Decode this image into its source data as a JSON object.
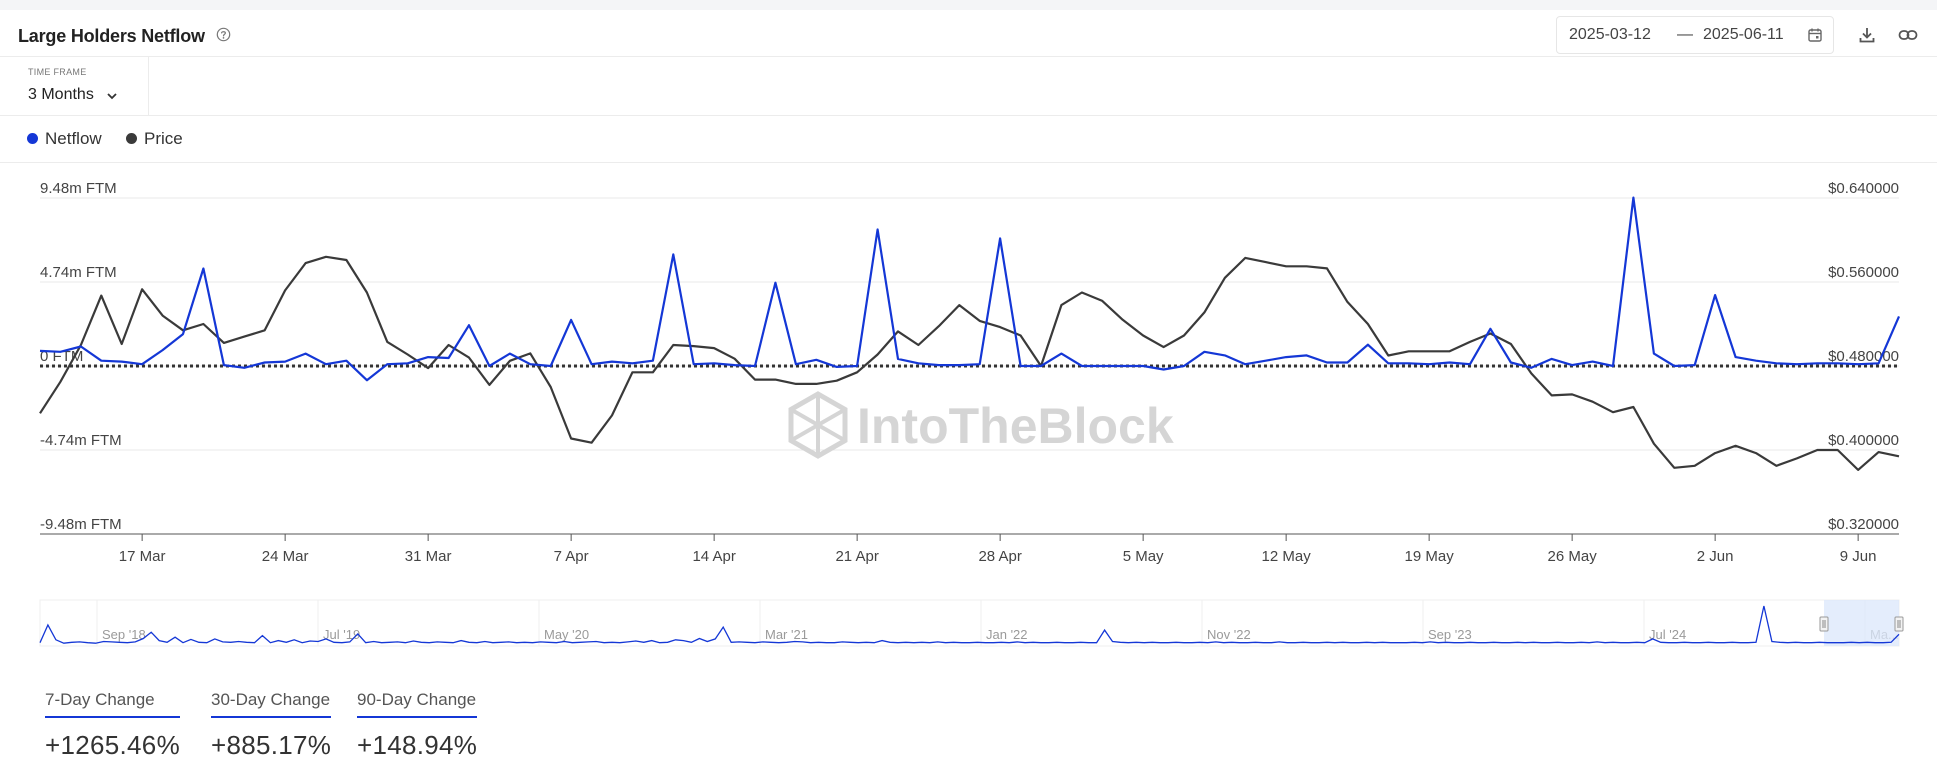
{
  "header": {
    "title": "Large Holders Netflow",
    "date_start": "2025-03-12",
    "date_sep": "—",
    "date_end": "2025-06-11"
  },
  "timeframe": {
    "label": "TIME FRAME",
    "value": "3 Months"
  },
  "legend": [
    {
      "label": "Netflow",
      "color": "#1437d6"
    },
    {
      "label": "Price",
      "color": "#3a3a3a"
    }
  ],
  "watermark": "IntoTheBlock",
  "stats": [
    {
      "label": "7-Day Change",
      "value": "+1265.46%"
    },
    {
      "label": "30-Day Change",
      "value": "+885.17%"
    },
    {
      "label": "90-Day Change",
      "value": "+148.94%"
    }
  ],
  "chart_data": {
    "type": "line",
    "x_start": "2025-03-12",
    "x_end": "2025-06-11",
    "x_ticks": [
      "17 Mar",
      "24 Mar",
      "31 Mar",
      "7 Apr",
      "14 Apr",
      "21 Apr",
      "28 Apr",
      "5 May",
      "12 May",
      "19 May",
      "26 May",
      "2 Jun",
      "9 Jun"
    ],
    "y_left": {
      "ticks": [
        "9.48m FTM",
        "4.74m FTM",
        "0 FTM",
        "-4.74m FTM",
        "-9.48m FTM"
      ],
      "min": -9.48,
      "max": 9.48,
      "unit": "m FTM"
    },
    "y_right": {
      "ticks": [
        "$0.640000",
        "$0.560000",
        "$0.480000",
        "$0.400000",
        "$0.320000"
      ],
      "min": 0.32,
      "max": 0.64
    },
    "grid": true,
    "zero_line": "dotted",
    "series": [
      {
        "name": "Netflow",
        "axis": "left",
        "color": "#1437d6",
        "values": [
          0.85,
          0.8,
          1.1,
          0.3,
          0.25,
          0.1,
          0.9,
          1.8,
          5.5,
          0.05,
          -0.1,
          0.2,
          0.25,
          0.7,
          0.1,
          0.3,
          -0.8,
          0.1,
          0.15,
          0.5,
          0.45,
          2.3,
          0.0,
          0.7,
          0.1,
          0.0,
          2.6,
          0.1,
          0.25,
          0.15,
          0.3,
          6.3,
          0.1,
          0.15,
          0.05,
          0.0,
          4.7,
          0.1,
          0.35,
          -0.05,
          0.0,
          7.7,
          0.4,
          0.15,
          0.05,
          0.05,
          0.1,
          7.2,
          0.0,
          0.0,
          0.7,
          0.0,
          0.0,
          0.0,
          0.0,
          -0.2,
          0.0,
          0.8,
          0.6,
          0.1,
          0.3,
          0.5,
          0.6,
          0.2,
          0.2,
          1.2,
          0.15,
          0.15,
          0.1,
          0.2,
          0.1,
          2.1,
          0.2,
          -0.1,
          0.4,
          0.05,
          0.25,
          0.0,
          9.5,
          0.7,
          0.0,
          0.05,
          4.0,
          0.5,
          0.3,
          0.15,
          0.1,
          0.15,
          0.15,
          0.1,
          0.15,
          2.8
        ]
      },
      {
        "name": "Price",
        "axis": "right",
        "color": "#3a3a3a",
        "values": [
          0.435,
          0.465,
          0.5,
          0.547,
          0.501,
          0.553,
          0.528,
          0.514,
          0.52,
          0.502,
          0.508,
          0.514,
          0.552,
          0.578,
          0.584,
          0.581,
          0.55,
          0.503,
          0.491,
          0.478,
          0.5,
          0.488,
          0.462,
          0.485,
          0.492,
          0.46,
          0.411,
          0.407,
          0.433,
          0.474,
          0.474,
          0.5,
          0.499,
          0.497,
          0.487,
          0.467,
          0.467,
          0.463,
          0.463,
          0.466,
          0.474,
          0.491,
          0.513,
          0.5,
          0.518,
          0.538,
          0.523,
          0.517,
          0.509,
          0.48,
          0.538,
          0.55,
          0.542,
          0.524,
          0.509,
          0.498,
          0.509,
          0.531,
          0.564,
          0.583,
          0.579,
          0.575,
          0.575,
          0.573,
          0.541,
          0.52,
          0.49,
          0.494,
          0.494,
          0.494,
          0.503,
          0.511,
          0.501,
          0.473,
          0.452,
          0.453,
          0.446,
          0.436,
          0.441,
          0.406,
          0.383,
          0.385,
          0.397,
          0.404,
          0.397,
          0.385,
          0.392,
          0.4,
          0.4,
          0.381,
          0.398,
          0.394
        ]
      }
    ],
    "navigator": {
      "ticks": [
        "Sep '18",
        "Jul '19",
        "May '20",
        "Mar '21",
        "Jan '22",
        "Nov '22",
        "Sep '23",
        "Jul '24",
        "Ma..."
      ],
      "values": [
        0.3,
        4.5,
        1.0,
        0.2,
        0.4,
        0.5,
        0.3,
        0.2,
        0.6,
        0.5,
        0.4,
        0.3,
        0.5,
        1.3,
        2.8,
        0.8,
        0.4,
        1.6,
        0.3,
        1.1,
        0.4,
        0.3,
        1.2,
        0.5,
        0.4,
        0.6,
        0.4,
        0.3,
        2.0,
        0.3,
        0.8,
        0.4,
        1.0,
        0.3,
        0.7,
        0.6,
        1.2,
        0.4,
        0.3,
        0.5,
        2.4,
        0.3,
        0.6,
        0.3,
        0.4,
        0.5,
        0.3,
        0.7,
        0.4,
        0.3,
        0.5,
        0.4,
        0.3,
        0.8,
        0.4,
        0.3,
        0.6,
        0.3,
        0.4,
        0.5,
        0.3,
        0.4,
        0.3,
        0.5,
        0.4,
        0.3,
        0.6,
        0.3,
        0.4,
        0.5,
        0.6,
        0.3,
        0.4,
        0.3,
        0.5,
        0.7,
        0.4,
        0.8,
        0.3,
        0.4,
        1.0,
        0.8,
        0.4,
        1.3,
        0.6,
        1.2,
        4.0,
        0.4,
        0.5,
        0.4,
        0.3,
        0.5,
        0.4,
        0.3,
        0.4,
        0.6,
        0.5,
        0.3,
        0.4,
        0.3,
        0.3,
        0.5,
        0.4,
        0.3,
        0.4,
        0.3,
        0.8,
        0.4,
        0.3,
        0.4,
        0.3,
        0.4,
        0.3,
        0.5,
        0.3,
        0.4,
        0.3,
        0.3,
        0.4,
        0.3,
        0.3,
        0.4,
        0.3,
        0.5,
        0.3,
        0.4,
        0.3,
        0.3,
        0.4,
        0.3,
        0.3,
        0.4,
        0.3,
        0.3,
        3.3,
        0.6,
        0.4,
        0.3,
        0.4,
        0.3,
        0.4,
        0.3,
        0.3,
        0.4,
        0.3,
        0.3,
        0.4,
        0.3,
        0.5,
        0.3,
        0.4,
        0.3,
        0.3,
        0.4,
        0.3,
        0.3,
        0.5,
        0.3,
        0.3,
        0.4,
        0.3,
        0.3,
        0.4,
        0.3,
        0.4,
        0.3,
        0.3,
        0.4,
        0.3,
        0.4,
        0.3,
        0.3,
        0.3,
        0.4,
        0.3,
        0.5,
        0.3,
        0.4,
        0.3,
        0.3,
        0.4,
        0.3,
        0.3,
        0.4,
        0.3,
        0.3,
        0.4,
        0.3,
        0.4,
        0.3,
        0.3,
        0.4,
        0.3,
        0.3,
        0.4,
        0.3,
        0.5,
        0.3,
        0.4,
        0.3,
        0.3,
        0.4,
        0.3,
        1.2,
        0.4,
        0.3,
        0.3,
        0.4,
        0.3,
        0.3,
        0.4,
        0.3,
        0.3,
        0.4,
        0.3,
        0.3,
        0.4,
        9.0,
        0.6,
        0.4,
        0.3,
        0.4,
        0.3,
        0.3,
        0.4,
        0.3,
        0.3,
        0.3,
        0.4,
        0.3,
        0.4,
        0.3,
        0.3,
        0.4,
        2.3
      ],
      "selection": "last 3 months"
    }
  }
}
